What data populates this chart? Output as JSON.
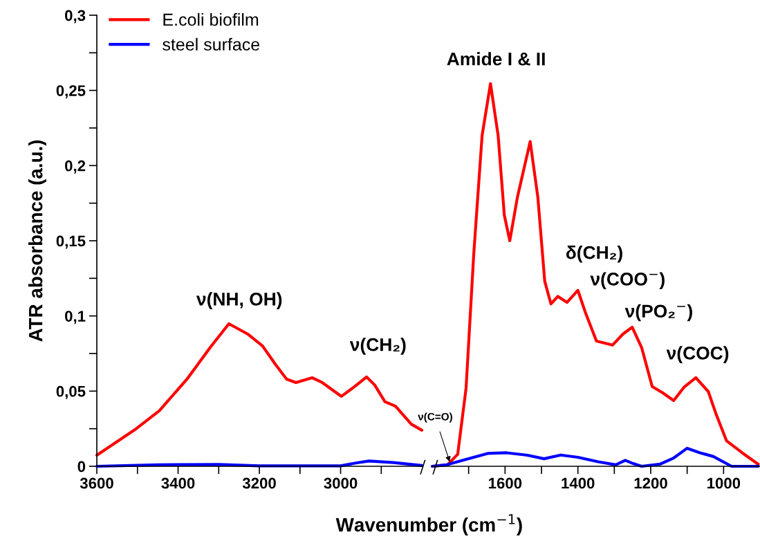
{
  "chart_data": [
    {
      "type": "line",
      "xlabel": "Wavenumber (cm$^{−1}$)",
      "ylabel": "ATR absorbance (a.u.)",
      "x": [
        3600,
        3503,
        3446,
        3378,
        3321,
        3275,
        3229,
        3192,
        3161,
        3133,
        3110,
        3070,
        3047,
        2998,
        2968,
        2936,
        2916,
        2891,
        2865,
        2826,
        2800
      ],
      "series": [
        {
          "name": "E.coli biofilm",
          "color": "#ff0000",
          "values": [
            0.0074,
            0.025,
            0.037,
            0.058,
            0.079,
            0.0948,
            0.088,
            0.08,
            0.068,
            0.058,
            0.0557,
            0.0589,
            0.056,
            0.0465,
            0.0525,
            0.0594,
            0.054,
            0.043,
            0.04,
            0.028,
            0.024
          ]
        },
        {
          "name": "steel surface",
          "color": "#0000ff",
          "x": [
            3600,
            3450,
            3300,
            3200,
            3000,
            2960,
            2930,
            2870,
            2800
          ],
          "values": [
            0.0,
            0.001,
            0.0012,
            0.0003,
            0.0003,
            0.0023,
            0.0035,
            0.0025,
            0.0005
          ]
        }
      ],
      "xlim": [
        3600,
        2800
      ],
      "xticks": [
        3600,
        {
          "value": 3500,
          "label": null
        },
        3400,
        {
          "value": 3300,
          "label": null
        },
        3200,
        {
          "value": 3100,
          "label": null
        },
        3000,
        {
          "value": 2900,
          "label": null
        }
      ],
      "ylim": [
        0,
        0.3
      ],
      "yticks": [
        0,
        {
          "value": 0.025,
          "label": null
        },
        {
          "value": 0.05,
          "label": "0,05"
        },
        {
          "value": 0.075,
          "label": null
        },
        {
          "value": 0.1,
          "label": "0,1"
        },
        {
          "value": 0.125,
          "label": null
        },
        {
          "value": 0.15,
          "label": "0,15"
        },
        {
          "value": 0.175,
          "label": null
        },
        {
          "value": 0.2,
          "label": "0,2"
        },
        {
          "value": 0.225,
          "label": null
        },
        {
          "value": 0.25,
          "label": "0,25"
        },
        {
          "value": 0.275,
          "label": null
        },
        {
          "value": 0.3,
          "label": "0,3"
        }
      ],
      "annotations": [
        {
          "text": "ν(NH, OH)",
          "x": 3275,
          "y": 0.0948
        },
        {
          "text": "ν(CH₂)",
          "x": 2936,
          "y": 0.0594
        }
      ],
      "legend": "top left",
      "grid": false,
      "marker": "none",
      "line_style": "solid"
    },
    {
      "type": "line",
      "x": [
        1798,
        1758,
        1730,
        1707,
        1686,
        1663,
        1640,
        1619,
        1602,
        1587,
        1566,
        1531,
        1510,
        1491,
        1474,
        1455,
        1430,
        1400,
        1379,
        1349,
        1305,
        1276,
        1251,
        1225,
        1196,
        1168,
        1137,
        1109,
        1076,
        1042,
        1021,
        992,
        949,
        905
      ],
      "series": [
        {
          "color": "#ff0000",
          "values": [
            0.0,
            0.001,
            0.008,
            0.052,
            0.141,
            0.22,
            0.2545,
            0.22,
            0.167,
            0.15,
            0.179,
            0.216,
            0.179,
            0.123,
            0.108,
            0.113,
            0.109,
            0.117,
            0.102,
            0.0833,
            0.0806,
            0.088,
            0.0925,
            0.079,
            0.053,
            0.049,
            0.0437,
            0.0525,
            0.0589,
            0.0497,
            0.035,
            0.017,
            0.009,
            0.0014
          ]
        },
        {
          "color": "#0000ff",
          "x": [
            1800,
            1760,
            1707,
            1646,
            1596,
            1542,
            1493,
            1447,
            1400,
            1344,
            1296,
            1270,
            1248,
            1225,
            1174,
            1137,
            1100,
            1065,
            1028,
            978,
            941,
            905
          ],
          "values": [
            0.0,
            0.001,
            0.0046,
            0.0086,
            0.009,
            0.0075,
            0.005,
            0.0075,
            0.006,
            0.003,
            0.001,
            0.004,
            0.0018,
            0.0,
            0.0015,
            0.0055,
            0.012,
            0.009,
            0.0065,
            0.0,
            0.0,
            0.0
          ]
        }
      ],
      "xlim": [
        1800,
        900
      ],
      "xticks": [
        {
          "value": 1700,
          "label": null
        },
        1600,
        {
          "value": 1500,
          "label": null
        },
        1400,
        {
          "value": 1300,
          "label": null
        },
        1200,
        {
          "value": 1100,
          "label": null
        },
        1000
      ],
      "ylim": [
        0,
        0.3
      ],
      "tick_labels": "x",
      "annotations": [
        {
          "text": "Amide I & II",
          "x": 1640,
          "y": 0.2545
        },
        {
          "text": "δ(CH₂)",
          "x": 1455,
          "y": 0.113
        },
        {
          "text": "ν(COO$^{−}$)",
          "x": 1400,
          "y": 0.117
        },
        {
          "text": "ν(PO₂$^{−}$)",
          "x": 1251,
          "y": 0.0925
        },
        {
          "text": "ν(COC)",
          "x": 1076,
          "y": 0.0589
        },
        {
          "text": "ν(C=O)",
          "x": 1752,
          "y": 0.003
        }
      ],
      "grid": false,
      "marker": "none",
      "line_style": "solid"
    }
  ]
}
